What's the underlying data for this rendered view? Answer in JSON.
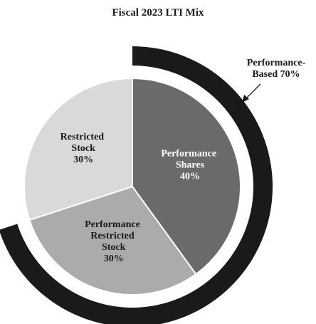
{
  "chart_data": {
    "type": "pie",
    "title": "Fiscal 2023 LTI Mix",
    "categories": [
      "Performance Shares",
      "Performance Restricted Stock",
      "Restricted Stock"
    ],
    "values": [
      40,
      30,
      30
    ],
    "value_labels": [
      "40%",
      "30%",
      "30%"
    ],
    "colors": [
      "#6a6a6a",
      "#ababab",
      "#d9d9d9"
    ],
    "label_colors": [
      "#ffffff",
      "#1a1a1a",
      "#1a1a1a"
    ],
    "annotation": "Performance-Based 70%",
    "annotation_color": "#1a1a1a"
  }
}
